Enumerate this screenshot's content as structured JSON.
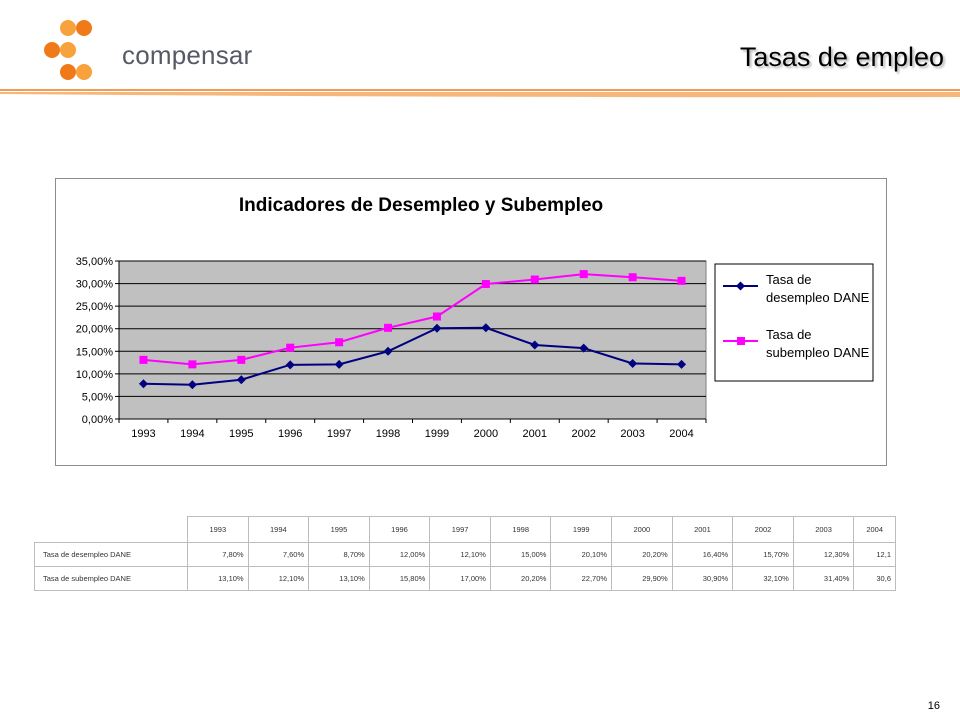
{
  "header": {
    "logo_text": "compensar",
    "title": "Tasas de empleo"
  },
  "colors": {
    "accent": "#f07a1a",
    "series_desempleo": "#000080",
    "series_subempleo": "#ff00ff",
    "plot_background": "#c0c0c0"
  },
  "chart_data": {
    "type": "line",
    "title": "Indicadores de Desempleo y Subempleo",
    "x": [
      "1993",
      "1994",
      "1995",
      "1996",
      "1997",
      "1998",
      "1999",
      "2000",
      "2001",
      "2002",
      "2003",
      "2004"
    ],
    "ylim": [
      0,
      35
    ],
    "y_ticks": [
      "0,00%",
      "5,00%",
      "10,00%",
      "15,00%",
      "20,00%",
      "25,00%",
      "30,00%",
      "35,00%"
    ],
    "grid": true,
    "legend_position": "right",
    "series": [
      {
        "name": "Tasa de desempleo DANE",
        "marker": "diamond",
        "values": [
          7.8,
          7.6,
          8.7,
          12.0,
          12.1,
          15.0,
          20.1,
          20.2,
          16.4,
          15.7,
          12.3,
          12.1
        ]
      },
      {
        "name": "Tasa de subempleo DANE",
        "marker": "square",
        "values": [
          13.1,
          12.1,
          13.1,
          15.8,
          17.0,
          20.2,
          22.7,
          29.9,
          30.9,
          32.1,
          31.4,
          30.6
        ]
      }
    ]
  },
  "legend": {
    "desempleo_line1": "Tasa de",
    "desempleo_line2": "desempleo DANE",
    "subempleo_line1": "Tasa de",
    "subempleo_line2": "subempleo DANE"
  },
  "table": {
    "years": [
      "1993",
      "1994",
      "1995",
      "1996",
      "1997",
      "1998",
      "1999",
      "2000",
      "2001",
      "2002",
      "2003",
      "2004"
    ],
    "rows": [
      {
        "label": "Tasa de desempleo DANE",
        "values": [
          "7,80%",
          "7,60%",
          "8,70%",
          "12,00%",
          "12,10%",
          "15,00%",
          "20,10%",
          "20,20%",
          "16,40%",
          "15,70%",
          "12,30%",
          "12,1"
        ]
      },
      {
        "label": "Tasa de subempleo DANE",
        "values": [
          "13,10%",
          "12,10%",
          "13,10%",
          "15,80%",
          "17,00%",
          "20,20%",
          "22,70%",
          "29,90%",
          "30,90%",
          "32,10%",
          "31,40%",
          "30,6"
        ]
      }
    ]
  },
  "footer": {
    "page_number": "16"
  }
}
